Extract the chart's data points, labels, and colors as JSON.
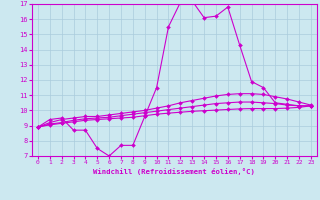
{
  "title": "",
  "xlabel": "Windchill (Refroidissement éolien,°C)",
  "background_color": "#cce8f0",
  "line_color": "#cc00cc",
  "grid_color": "#aaccdd",
  "xlim": [
    -0.5,
    23.5
  ],
  "ylim": [
    7,
    17
  ],
  "yticks": [
    7,
    8,
    9,
    10,
    11,
    12,
    13,
    14,
    15,
    16,
    17
  ],
  "xticks": [
    0,
    1,
    2,
    3,
    4,
    5,
    6,
    7,
    8,
    9,
    10,
    11,
    12,
    13,
    14,
    15,
    16,
    17,
    18,
    19,
    20,
    21,
    22,
    23
  ],
  "curve1_x": [
    0,
    1,
    2,
    3,
    4,
    5,
    6,
    7,
    8,
    9,
    10,
    11,
    12,
    13,
    14,
    15,
    16,
    17,
    18,
    19,
    20,
    21,
    22,
    23
  ],
  "curve1_y": [
    8.9,
    9.4,
    9.5,
    8.7,
    8.7,
    7.5,
    7.0,
    7.7,
    7.7,
    9.6,
    11.5,
    15.5,
    17.1,
    17.2,
    16.1,
    16.2,
    16.8,
    14.3,
    11.9,
    11.5,
    10.5,
    10.4,
    10.3,
    10.3
  ],
  "curve2_x": [
    0,
    1,
    2,
    3,
    4,
    5,
    6,
    7,
    8,
    9,
    10,
    11,
    12,
    13,
    14,
    15,
    16,
    17,
    18,
    19,
    20,
    21,
    22,
    23
  ],
  "curve2_y": [
    8.9,
    9.2,
    9.4,
    9.5,
    9.6,
    9.6,
    9.7,
    9.8,
    9.9,
    10.0,
    10.15,
    10.3,
    10.5,
    10.65,
    10.8,
    10.95,
    11.05,
    11.1,
    11.1,
    11.05,
    10.9,
    10.75,
    10.55,
    10.35
  ],
  "curve3_x": [
    0,
    1,
    2,
    3,
    4,
    5,
    6,
    7,
    8,
    9,
    10,
    11,
    12,
    13,
    14,
    15,
    16,
    17,
    18,
    19,
    20,
    21,
    22,
    23
  ],
  "curve3_y": [
    8.9,
    9.1,
    9.2,
    9.35,
    9.45,
    9.5,
    9.55,
    9.65,
    9.75,
    9.85,
    9.95,
    10.05,
    10.15,
    10.25,
    10.35,
    10.45,
    10.5,
    10.55,
    10.55,
    10.5,
    10.45,
    10.35,
    10.3,
    10.3
  ],
  "curve4_x": [
    0,
    1,
    2,
    3,
    4,
    5,
    6,
    7,
    8,
    9,
    10,
    11,
    12,
    13,
    14,
    15,
    16,
    17,
    18,
    19,
    20,
    21,
    22,
    23
  ],
  "curve4_y": [
    8.9,
    9.05,
    9.15,
    9.25,
    9.35,
    9.4,
    9.45,
    9.5,
    9.55,
    9.65,
    9.75,
    9.82,
    9.88,
    9.94,
    9.98,
    10.02,
    10.06,
    10.1,
    10.12,
    10.12,
    10.12,
    10.15,
    10.2,
    10.3
  ]
}
